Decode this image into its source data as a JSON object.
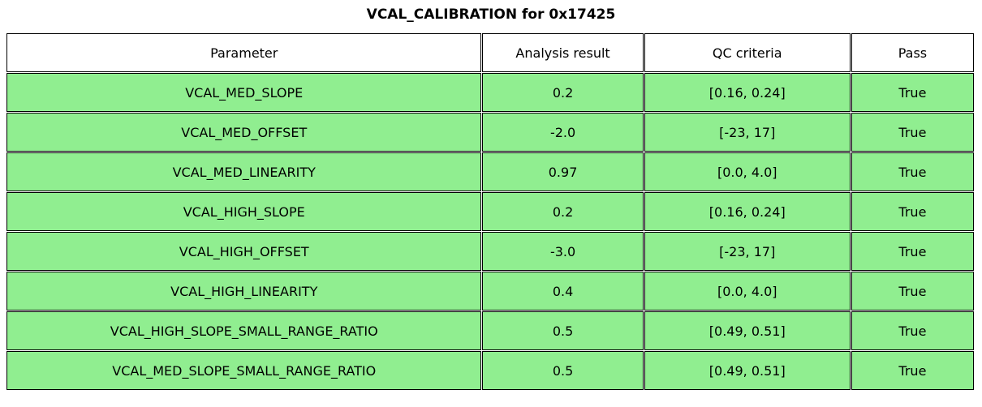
{
  "title": "VCAL_CALIBRATION for 0x17425",
  "chart_data": {
    "type": "table",
    "title": "VCAL_CALIBRATION for 0x17425",
    "columns": [
      "Parameter",
      "Analysis result",
      "QC criteria",
      "Pass"
    ],
    "rows": [
      [
        "VCAL_MED_SLOPE",
        "0.2",
        "[0.16, 0.24]",
        "True"
      ],
      [
        "VCAL_MED_OFFSET",
        "-2.0",
        "[-23, 17]",
        "True"
      ],
      [
        "VCAL_MED_LINEARITY",
        "0.97",
        "[0.0, 4.0]",
        "True"
      ],
      [
        "VCAL_HIGH_SLOPE",
        "0.2",
        "[0.16, 0.24]",
        "True"
      ],
      [
        "VCAL_HIGH_OFFSET",
        "-3.0",
        "[-23, 17]",
        "True"
      ],
      [
        "VCAL_HIGH_LINEARITY",
        "0.4",
        "[0.0, 4.0]",
        "True"
      ],
      [
        "VCAL_HIGH_SLOPE_SMALL_RANGE_RATIO",
        "0.5",
        "[0.49, 0.51]",
        "True"
      ],
      [
        "VCAL_MED_SLOPE_SMALL_RANGE_RATIO",
        "0.5",
        "[0.49, 0.51]",
        "True"
      ]
    ],
    "column_keys": [
      "parameter",
      "analysis-result",
      "qc-criteria",
      "pass"
    ],
    "colors": {
      "pass_row_bg": "#90EE90",
      "header_bg": "#FFFFFF",
      "border": "#000000",
      "text": "#000000"
    },
    "layout": {
      "header_row": true,
      "all_rows_pass": true
    }
  }
}
